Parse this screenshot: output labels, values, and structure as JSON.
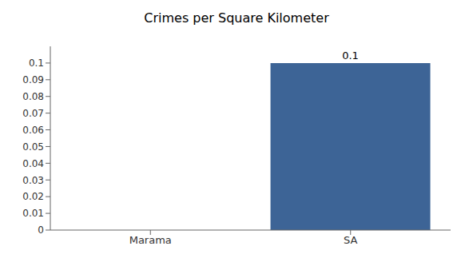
{
  "chart_data": {
    "type": "bar",
    "title": "Crimes per Square Kilometer",
    "categories": [
      "Marama",
      "SA"
    ],
    "values": [
      0.0,
      0.1
    ],
    "color": "#3d6496",
    "ylim": [
      0,
      0.11
    ],
    "yticks": [
      0,
      0.01,
      0.02,
      0.03,
      0.04,
      0.05,
      0.06,
      0.07,
      0.08,
      0.09,
      0.1
    ],
    "data_labels": true,
    "grid": false
  }
}
